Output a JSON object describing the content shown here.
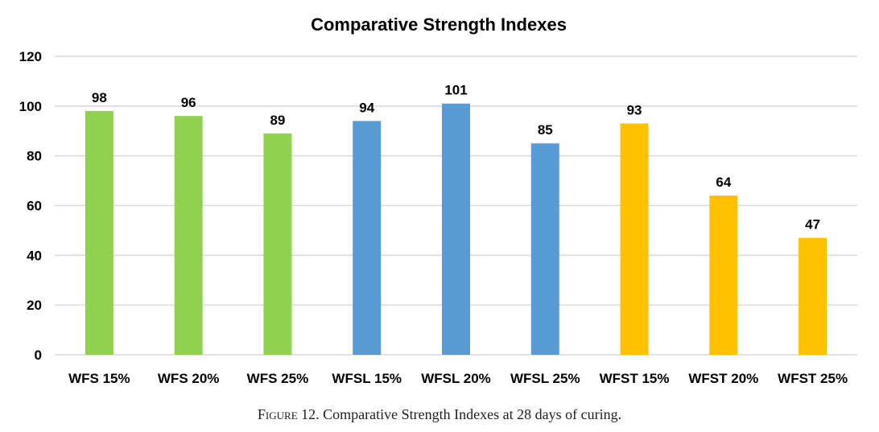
{
  "chart_data": {
    "type": "bar",
    "title": "Comparative Strength Indexes",
    "xlabel": "",
    "ylabel": "",
    "ylim": [
      0,
      120
    ],
    "yticks": [
      0,
      20,
      40,
      60,
      80,
      100,
      120
    ],
    "grid": true,
    "categories": [
      "WFS 15%",
      "WFS 20%",
      "WFS 25%",
      "WFSL 15%",
      "WFSL 20%",
      "WFSL 25%",
      "WFST 15%",
      "WFST 20%",
      "WFST 25%"
    ],
    "values": [
      98,
      96,
      89,
      94,
      101,
      85,
      93,
      64,
      47
    ],
    "data_labels": [
      "98",
      "96",
      "89",
      "94",
      "101",
      "85",
      "93",
      "64",
      "47"
    ],
    "bar_colors": [
      "#92d050",
      "#92d050",
      "#92d050",
      "#5b9bd5",
      "#5b9bd5",
      "#5b9bd5",
      "#ffc000",
      "#ffc000",
      "#ffc000"
    ]
  },
  "caption": {
    "prefix": "Figure 12",
    "text": ". Comparative Strength Indexes at 28 days of curing."
  }
}
